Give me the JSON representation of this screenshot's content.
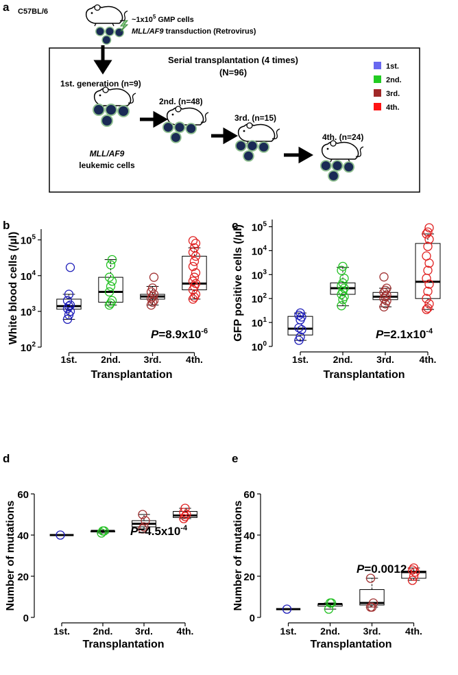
{
  "diagram": {
    "panel": "a",
    "strain": "C57BL/6",
    "cells_prefix": "~1x10",
    "cells_exp": "5",
    "cells_suffix": "GMP cells",
    "transduction_gene": "MLL/AF9",
    "transduction_text": "transduction (Retrovirus)",
    "box_title": "Serial transplantation (4 times)",
    "box_total": "(N=96)",
    "generations": [
      {
        "label": "1st. generation (n=9)",
        "color": "#7474e8"
      },
      {
        "label": "2nd. (n=48)",
        "color": "#1ec81e"
      },
      {
        "label": "3rd. (n=15)",
        "color": "#a52a2a"
      },
      {
        "label": "4th. (n=24)",
        "color": "#ff1a1a"
      }
    ],
    "cells_gene": "MLL/AF9",
    "cells_label": "leukemic cells",
    "legend": [
      {
        "name": "1st.",
        "color": "#6868f0"
      },
      {
        "name": "2nd.",
        "color": "#22cc22"
      },
      {
        "name": "3rd.",
        "color": "#a02828"
      },
      {
        "name": "4th.",
        "color": "#ff1414"
      }
    ]
  },
  "chart_data": [
    {
      "type": "box",
      "panel": "b",
      "ylabel": "White blood cells (/µl)",
      "xlabel": "Transplantation",
      "log_y": true,
      "categories": [
        "1st.",
        "2nd.",
        "3rd.",
        "4th."
      ],
      "ylim": [
        100,
        200000
      ],
      "yticks": [
        {
          "value": 100,
          "label": "10",
          "exp": "2"
        },
        {
          "value": 1000,
          "label": "10",
          "exp": "3"
        },
        {
          "value": 10000,
          "label": "10",
          "exp": "4"
        },
        {
          "value": 100000,
          "label": "10",
          "exp": "5"
        }
      ],
      "annotation": {
        "italic": "P",
        "text": "=8.9x10",
        "exp": "-6"
      },
      "boxes": [
        {
          "color": "#1a1ab8",
          "whisker_low": 600,
          "q1": 1150,
          "median": 1400,
          "q3": 2200,
          "whisker_high": 3000,
          "points": [
            600,
            800,
            1000,
            1200,
            1400,
            1500,
            2000,
            3000,
            17000
          ]
        },
        {
          "color": "#22c022",
          "whisker_low": 1500,
          "q1": 1800,
          "median": 3500,
          "q3": 9000,
          "whisker_high": 28000,
          "points": [
            1500,
            1700,
            2000,
            3500,
            5000,
            7000,
            9000,
            20000,
            28000
          ]
        },
        {
          "color": "#a03030",
          "whisker_low": 1500,
          "q1": 2200,
          "median": 2600,
          "q3": 3000,
          "whisker_high": 5000,
          "points": [
            1500,
            1800,
            2000,
            2300,
            2600,
            3000,
            3500,
            4500,
            9000
          ]
        },
        {
          "color": "#e02020",
          "whisker_low": 2200,
          "q1": 4000,
          "median": 6000,
          "q3": 35000,
          "whisker_high": 60000,
          "points": [
            2200,
            2500,
            3000,
            4000,
            5000,
            6000,
            7000,
            9000,
            12000,
            18000,
            25000,
            35000,
            45000,
            60000,
            80000,
            95000
          ]
        }
      ]
    },
    {
      "type": "box",
      "panel": "c",
      "ylabel": "GFP positive cells (/µl)",
      "xlabel": "Transplantation",
      "log_y": true,
      "categories": [
        "1st.",
        "2nd.",
        "3rd.",
        "4th."
      ],
      "ylim": [
        1,
        200000
      ],
      "yticks": [
        {
          "value": 1,
          "label": "10",
          "exp": "0"
        },
        {
          "value": 10,
          "label": "10",
          "exp": "1"
        },
        {
          "value": 100,
          "label": "10",
          "exp": "2"
        },
        {
          "value": 1000,
          "label": "10",
          "exp": "3"
        },
        {
          "value": 10000,
          "label": "10",
          "exp": "4"
        },
        {
          "value": 100000,
          "label": "10",
          "exp": "5"
        }
      ],
      "annotation": {
        "italic": "P",
        "text": "=2.1x10",
        "exp": "-4"
      },
      "boxes": [
        {
          "color": "#1a1ab8",
          "whisker_low": 1.8,
          "q1": 3,
          "median": 5.5,
          "q3": 18,
          "whisker_high": 25,
          "points": [
            1.8,
            2.5,
            5,
            6,
            13,
            17,
            20,
            25
          ]
        },
        {
          "color": "#22c022",
          "whisker_low": 50,
          "q1": 150,
          "median": 270,
          "q3": 450,
          "whisker_high": 2000,
          "points": [
            50,
            90,
            120,
            150,
            200,
            270,
            350,
            450,
            700,
            1500,
            2200
          ]
        },
        {
          "color": "#a03030",
          "whisker_low": 45,
          "q1": 90,
          "median": 120,
          "q3": 180,
          "whisker_high": 270,
          "points": [
            45,
            60,
            80,
            100,
            120,
            140,
            180,
            220,
            270,
            800
          ]
        },
        {
          "color": "#e02020",
          "whisker_low": 35,
          "q1": 100,
          "median": 500,
          "q3": 20000,
          "whisker_high": 50000,
          "points": [
            35,
            40,
            60,
            100,
            200,
            400,
            700,
            1500,
            3000,
            6000,
            15000,
            30000,
            50000,
            60000,
            90000
          ]
        }
      ]
    },
    {
      "type": "box",
      "panel": "d",
      "ylabel": "Number of mutations",
      "xlabel": "Transplantation",
      "log_y": false,
      "categories": [
        "1st.",
        "2nd.",
        "3rd.",
        "4th."
      ],
      "ylim": [
        0,
        60
      ],
      "yticks": [
        0,
        20,
        40,
        60
      ],
      "annotation": {
        "italic": "P",
        "text": "=4.5x10",
        "exp": "-4"
      },
      "boxes": [
        {
          "color": "#1a1ab8",
          "whisker_low": 40,
          "q1": 40,
          "median": 40,
          "q3": 40,
          "whisker_high": 40,
          "points": [
            40
          ]
        },
        {
          "color": "#22c022",
          "whisker_low": 41,
          "q1": 41.5,
          "median": 42,
          "q3": 42,
          "whisker_high": 42,
          "points": [
            41,
            42,
            42
          ]
        },
        {
          "color": "#a03030",
          "whisker_low": 43,
          "q1": 44,
          "median": 45.5,
          "q3": 47,
          "whisker_high": 50,
          "points": [
            43,
            44,
            47,
            50
          ]
        },
        {
          "color": "#e02020",
          "whisker_low": 48,
          "q1": 48.5,
          "median": 49.5,
          "q3": 51.5,
          "whisker_high": 53,
          "points": [
            48,
            49,
            50,
            51,
            53
          ]
        }
      ]
    },
    {
      "type": "box",
      "panel": "e",
      "ylabel": "Number of mutations",
      "xlabel": "Transplantation",
      "log_y": false,
      "categories": [
        "1st.",
        "2nd.",
        "3rd.",
        "4th."
      ],
      "ylim": [
        0,
        60
      ],
      "yticks": [
        0,
        20,
        40,
        60
      ],
      "annotation": {
        "italic": "P",
        "text": "=0.0012"
      },
      "boxes": [
        {
          "color": "#1a1ab8",
          "whisker_low": 4,
          "q1": 4,
          "median": 4,
          "q3": 4,
          "whisker_high": 4,
          "points": [
            4
          ]
        },
        {
          "color": "#22c022",
          "whisker_low": 4,
          "q1": 5.5,
          "median": 6.5,
          "q3": 6.5,
          "whisker_high": 7,
          "points": [
            4,
            7,
            7
          ]
        },
        {
          "color": "#a03030",
          "whisker_low": 5,
          "q1": 6,
          "median": 7,
          "q3": 13.5,
          "whisker_high": 19,
          "points": [
            5,
            5,
            7,
            19
          ]
        },
        {
          "color": "#e02020",
          "whisker_low": 18,
          "q1": 19,
          "median": 22,
          "q3": 22.5,
          "whisker_high": 24,
          "points": [
            18,
            20,
            22,
            23,
            24
          ]
        }
      ]
    }
  ]
}
